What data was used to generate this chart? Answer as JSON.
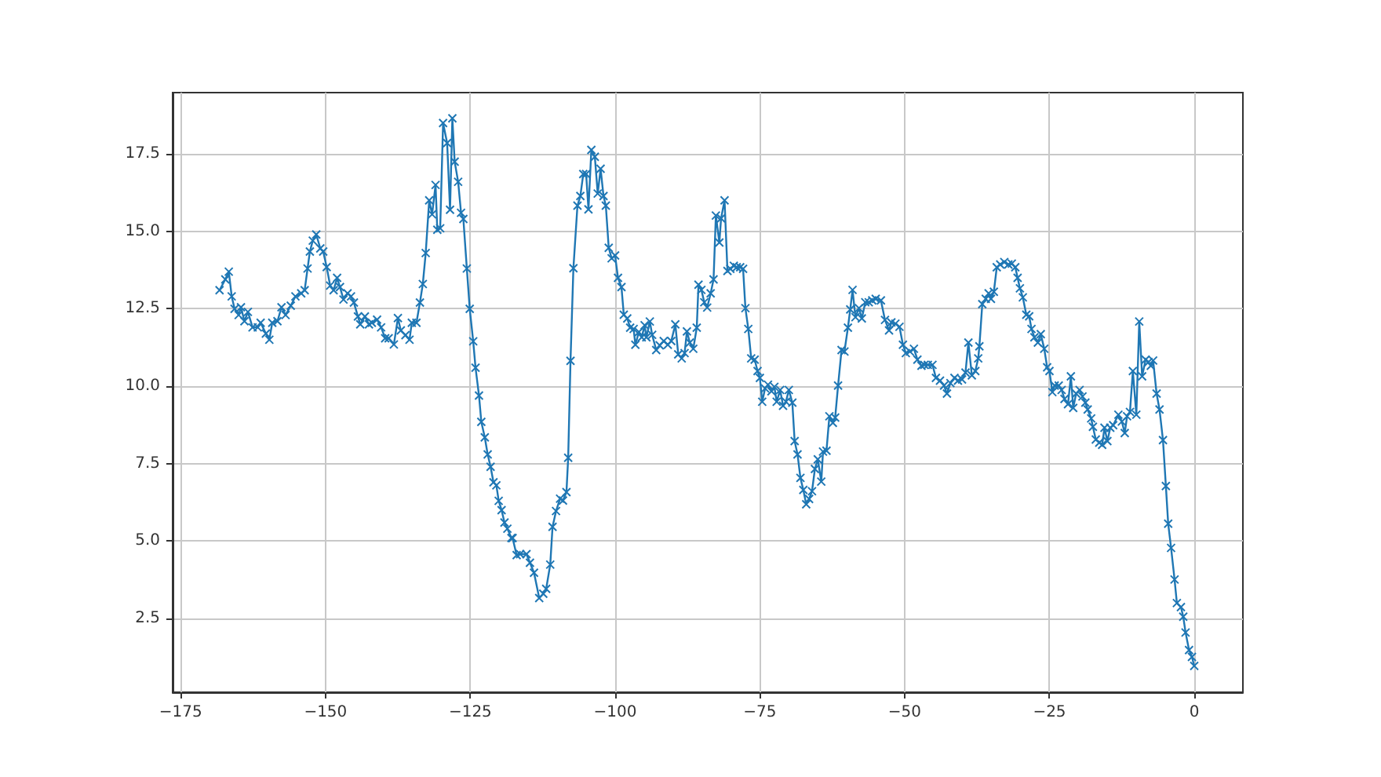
{
  "chart_data": {
    "type": "line",
    "marker": "cross",
    "line_style": "solid",
    "grid": true,
    "xlim": [
      -176.4,
      8.4
    ],
    "ylim": [
      0.12,
      19.48
    ],
    "xticks": [
      {
        "value": -175,
        "label": "−175"
      },
      {
        "value": -150,
        "label": "−150"
      },
      {
        "value": -125,
        "label": "−125"
      },
      {
        "value": -100,
        "label": "−100"
      },
      {
        "value": -75,
        "label": "−75"
      },
      {
        "value": -50,
        "label": "−50"
      },
      {
        "value": -25,
        "label": "−25"
      },
      0
    ],
    "yticks": [
      2.5,
      {
        "value": 5,
        "label": "5.0"
      },
      7.5,
      {
        "value": 10,
        "label": "10.0"
      },
      12.5,
      {
        "value": 15,
        "label": "15.0"
      },
      17.5
    ],
    "series": [
      {
        "color": "#1f77b4",
        "x": [
          -168.3,
          -167.3,
          -166.7,
          -166.2,
          -165.7,
          -165.0,
          -164.6,
          -164.0,
          -163.4,
          -162.6,
          -161.7,
          -161.2,
          -160.3,
          -159.7,
          -159.2,
          -158.3,
          -157.6,
          -156.9,
          -156.0,
          -155.2,
          -154.2,
          -153.6,
          -153.1,
          -152.7,
          -152.2,
          -151.6,
          -150.9,
          -150.4,
          -149.8,
          -149.2,
          -148.6,
          -148.0,
          -147.5,
          -146.9,
          -146.2,
          -145.6,
          -145.1,
          -144.4,
          -144.0,
          -143.2,
          -142.5,
          -142.0,
          -141.1,
          -140.4,
          -139.7,
          -139.1,
          -138.2,
          -137.5,
          -137.0,
          -136.2,
          -135.5,
          -135.1,
          -134.3,
          -133.7,
          -133.2,
          -132.7,
          -132.1,
          -131.6,
          -131.0,
          -130.7,
          -130.2,
          -129.7,
          -129.0,
          -128.5,
          -128.1,
          -127.7,
          -127.1,
          -126.6,
          -126.2,
          -125.6,
          -125.1,
          -124.5,
          -124.1,
          -123.5,
          -123.1,
          -122.5,
          -122.0,
          -121.5,
          -121.0,
          -120.5,
          -120.1,
          -119.6,
          -119.1,
          -118.6,
          -117.9,
          -117.7,
          -117.0,
          -116.4,
          -115.3,
          -114.7,
          -114.0,
          -113.1,
          -112.4,
          -111.9,
          -111.2,
          -110.8,
          -110.2,
          -109.5,
          -109.0,
          -108.4,
          -108.1,
          -107.7,
          -107.2,
          -106.5,
          -106.0,
          -105.5,
          -105.0,
          -104.6,
          -104.1,
          -103.5,
          -103.0,
          -102.5,
          -102.0,
          -101.6,
          -101.1,
          -100.6,
          -100.0,
          -99.5,
          -98.9,
          -98.5,
          -97.9,
          -97.4,
          -96.8,
          -96.5,
          -95.9,
          -95.4,
          -94.9,
          -94.6,
          -94.0,
          -93.6,
          -92.9,
          -92.3,
          -91.6,
          -90.9,
          -90.3,
          -89.6,
          -89.1,
          -88.5,
          -88.0,
          -87.6,
          -87.1,
          -86.5,
          -85.9,
          -85.6,
          -85.1,
          -84.6,
          -84.1,
          -83.5,
          -83.0,
          -82.6,
          -82.0,
          -81.7,
          -81.1,
          -80.6,
          -80.1,
          -79.5,
          -79.0,
          -78.4,
          -77.9,
          -77.5,
          -77.0,
          -76.5,
          -75.9,
          -75.4,
          -75.0,
          -74.6,
          -74.1,
          -73.6,
          -73.0,
          -72.5,
          -72.1,
          -71.5,
          -71.0,
          -70.5,
          -70.0,
          -69.4,
          -69.0,
          -68.5,
          -68.0,
          -67.5,
          -67.0,
          -66.5,
          -66.0,
          -65.5,
          -65.0,
          -64.4,
          -64.1,
          -63.5,
          -63.0,
          -62.4,
          -62.0,
          -61.5,
          -60.9,
          -60.4,
          -59.8,
          -59.4,
          -59.0,
          -58.5,
          -57.9,
          -57.4,
          -56.8,
          -56.2,
          -55.6,
          -55.0,
          -54.1,
          -53.4,
          -52.7,
          -52.3,
          -51.6,
          -50.9,
          -50.3,
          -49.8,
          -49.1,
          -48.4,
          -47.8,
          -47.1,
          -46.6,
          -46.0,
          -45.2,
          -44.6,
          -43.9,
          -43.2,
          -42.7,
          -42.1,
          -41.4,
          -40.8,
          -40.1,
          -39.5,
          -39.0,
          -38.4,
          -37.8,
          -37.3,
          -37.1,
          -36.6,
          -36.0,
          -35.5,
          -35.1,
          -34.6,
          -34.1,
          -33.5,
          -32.8,
          -32.1,
          -31.5,
          -30.9,
          -30.5,
          -30.1,
          -29.6,
          -29.0,
          -28.5,
          -28.1,
          -27.6,
          -27.0,
          -26.5,
          -25.9,
          -25.4,
          -25.0,
          -24.5,
          -24.1,
          -23.4,
          -22.9,
          -22.4,
          -21.8,
          -21.3,
          -20.9,
          -20.4,
          -19.8,
          -19.3,
          -18.8,
          -18.4,
          -17.8,
          -17.5,
          -17.0,
          -16.4,
          -15.9,
          -15.5,
          -15.0,
          -14.5,
          -14.0,
          -13.1,
          -12.5,
          -12.0,
          -11.6,
          -11.1,
          -10.6,
          -10.0,
          -9.5,
          -9.0,
          -8.4,
          -7.9,
          -7.5,
          -7.1,
          -6.5,
          -6.0,
          -5.4,
          -4.9,
          -4.5,
          -4.0,
          -3.4,
          -3.0,
          -2.3,
          -1.9,
          -1.5,
          -0.9,
          -0.4,
          0.0
        ],
        "values": [
          13.1,
          13.45,
          13.7,
          12.9,
          12.5,
          12.3,
          12.55,
          12.1,
          12.4,
          11.9,
          11.9,
          12.05,
          11.7,
          11.5,
          12.05,
          12.1,
          12.55,
          12.3,
          12.6,
          12.9,
          13.0,
          13.1,
          13.8,
          14.35,
          14.7,
          14.9,
          14.45,
          14.35,
          13.85,
          13.25,
          13.1,
          13.5,
          13.2,
          12.8,
          13.0,
          12.9,
          12.7,
          12.25,
          12.0,
          12.25,
          12.0,
          12.05,
          12.15,
          11.9,
          11.55,
          11.55,
          11.35,
          12.2,
          11.8,
          11.65,
          11.5,
          12.05,
          12.05,
          12.7,
          13.3,
          14.3,
          16.0,
          15.55,
          16.5,
          15.05,
          15.1,
          18.5,
          17.85,
          15.7,
          18.65,
          17.25,
          16.6,
          15.6,
          15.4,
          13.8,
          12.5,
          11.45,
          10.6,
          9.7,
          8.85,
          8.35,
          7.8,
          7.4,
          6.9,
          6.8,
          6.3,
          6.0,
          5.6,
          5.4,
          5.1,
          5.1,
          4.55,
          4.58,
          4.58,
          4.3,
          3.98,
          3.16,
          3.3,
          3.46,
          4.24,
          5.46,
          5.97,
          6.37,
          6.31,
          6.58,
          7.69,
          10.82,
          13.81,
          15.83,
          16.14,
          16.85,
          16.85,
          15.71,
          17.63,
          17.41,
          16.22,
          17.02,
          16.14,
          15.83,
          14.47,
          14.13,
          14.22,
          13.5,
          13.2,
          12.31,
          12.19,
          11.89,
          11.85,
          11.34,
          11.75,
          11.58,
          11.97,
          11.58,
          12.09,
          11.66,
          11.17,
          11.32,
          11.46,
          11.34,
          11.46,
          12.0,
          11.03,
          10.9,
          11.07,
          11.77,
          11.41,
          11.21,
          11.89,
          13.28,
          13.11,
          12.71,
          12.54,
          13.0,
          13.45,
          15.51,
          14.64,
          15.42,
          16.0,
          13.72,
          13.79,
          13.89,
          13.84,
          13.84,
          13.79,
          12.52,
          11.85,
          10.9,
          10.86,
          10.49,
          10.27,
          9.5,
          9.93,
          10.05,
          9.84,
          9.98,
          9.5,
          9.88,
          9.37,
          9.5,
          9.88,
          9.47,
          8.23,
          7.8,
          7.04,
          6.65,
          6.19,
          6.36,
          6.61,
          7.33,
          7.64,
          6.92,
          7.89,
          7.92,
          9.03,
          8.82,
          8.99,
          10.02,
          11.17,
          11.12,
          11.89,
          12.48,
          13.11,
          12.23,
          12.52,
          12.19,
          12.71,
          12.71,
          12.77,
          12.82,
          12.77,
          12.14,
          11.8,
          12.06,
          12.02,
          11.92,
          11.34,
          11.07,
          11.12,
          11.21,
          10.86,
          10.66,
          10.69,
          10.69,
          10.69,
          10.27,
          10.18,
          10.02,
          9.76,
          10.1,
          10.27,
          10.18,
          10.22,
          10.44,
          11.41,
          10.35,
          10.49,
          10.9,
          11.29,
          12.65,
          12.82,
          13.0,
          12.82,
          13.05,
          13.84,
          13.93,
          14.01,
          13.93,
          13.96,
          13.84,
          13.5,
          13.16,
          12.87,
          12.31,
          12.26,
          11.85,
          11.58,
          11.41,
          11.68,
          11.21,
          10.61,
          10.49,
          9.81,
          10.02,
          10.02,
          9.88,
          9.59,
          9.42,
          10.32,
          9.3,
          9.76,
          9.88,
          9.67,
          9.47,
          9.25,
          8.96,
          8.69,
          8.28,
          8.18,
          8.11,
          8.66,
          8.23,
          8.66,
          8.74,
          9.08,
          8.86,
          8.49,
          9.03,
          9.17,
          10.49,
          9.08,
          12.09,
          10.32,
          10.86,
          10.78,
          10.66,
          10.83,
          9.76,
          9.25,
          8.26,
          6.78,
          5.56,
          4.78,
          3.76,
          3.0,
          2.87,
          2.56,
          2.05,
          1.48,
          1.26,
          0.97
        ]
      }
    ]
  }
}
